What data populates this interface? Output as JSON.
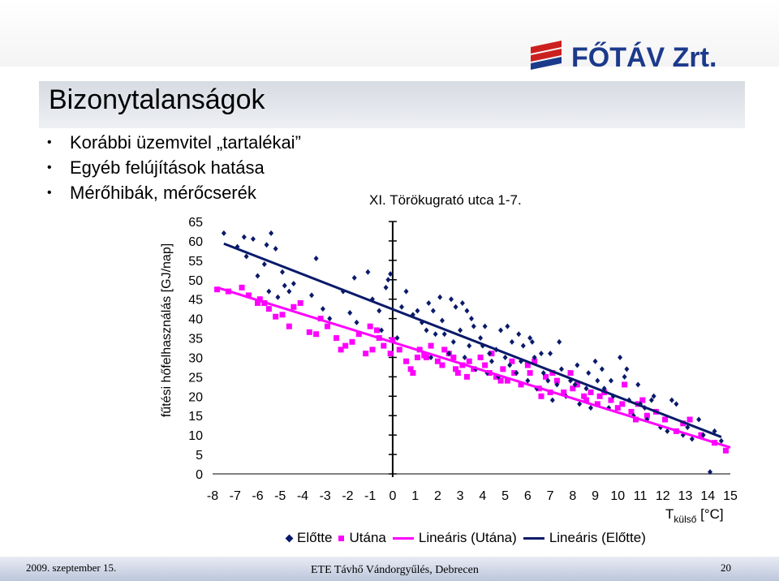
{
  "slide": {
    "title": "Bizonytalanságok",
    "bullets": [
      "Korábbi üzemvitel „tartalékai”",
      "Egyéb felújítások hatása",
      "Mérőhibák, mérőcserék"
    ],
    "logo_text": "FŐTÁV Zrt.",
    "footer": {
      "date": "2009. szeptember 15.",
      "event": "ETE Távhő Vándorgyűlés, Debrecen",
      "page": "20"
    }
  },
  "colors": {
    "before": "#0a1a6a",
    "after": "#ff00ff",
    "logo_red": "#cc2020",
    "logo_blue": "#1c3a8c"
  },
  "chart_data": {
    "type": "scatter",
    "title": "XI. Törökugrató utca 1-7.",
    "ylabel": "fűtési hőfelhasználás [GJ/nap]",
    "xlabel_main": "T",
    "xlabel_sub": "külső",
    "xlabel_unit": " [°C]",
    "xlim": [
      -8,
      15
    ],
    "ylim": [
      0,
      65
    ],
    "xticks": [
      -8,
      -7,
      -6,
      -5,
      -4,
      -3,
      -2,
      -1,
      0,
      1,
      2,
      3,
      4,
      5,
      6,
      7,
      8,
      9,
      10,
      11,
      12,
      13,
      14,
      15
    ],
    "yticks": [
      0,
      5,
      10,
      15,
      20,
      25,
      30,
      35,
      40,
      45,
      50,
      55,
      60,
      65
    ],
    "legend_position": "bottom",
    "series": [
      {
        "name": "Előtte",
        "marker": "diamond",
        "points": [
          [
            -7.5,
            62
          ],
          [
            -6.9,
            58.5
          ],
          [
            -6.6,
            61
          ],
          [
            -6.2,
            60.5
          ],
          [
            -6.5,
            56
          ],
          [
            -5.6,
            59
          ],
          [
            -5.4,
            62
          ],
          [
            -5.2,
            58
          ],
          [
            -5.7,
            54
          ],
          [
            -6,
            51
          ],
          [
            -5.5,
            47
          ],
          [
            -5.1,
            45.5
          ],
          [
            -4.8,
            48.5
          ],
          [
            -4.4,
            49
          ],
          [
            -4.6,
            47
          ],
          [
            -4.9,
            52
          ],
          [
            -3.4,
            55.5
          ],
          [
            -3.6,
            46
          ],
          [
            -3.1,
            42.5
          ],
          [
            -2.8,
            40
          ],
          [
            -2.2,
            47
          ],
          [
            -1.9,
            41.5
          ],
          [
            -1.6,
            39
          ],
          [
            -1.7,
            50.5
          ],
          [
            -1.1,
            52
          ],
          [
            -0.9,
            45
          ],
          [
            -0.6,
            42
          ],
          [
            -0.2,
            50
          ],
          [
            -0.3,
            48
          ],
          [
            -0.1,
            51.5
          ],
          [
            0.4,
            43
          ],
          [
            0.6,
            47
          ],
          [
            0.9,
            41
          ],
          [
            1.1,
            42
          ],
          [
            1.3,
            39
          ],
          [
            1.6,
            44
          ],
          [
            1.8,
            42
          ],
          [
            2.1,
            45.5
          ],
          [
            2.2,
            39.5
          ],
          [
            2.3,
            36
          ],
          [
            2.6,
            45
          ],
          [
            2.8,
            43
          ],
          [
            3.1,
            44
          ],
          [
            3.3,
            42
          ],
          [
            3.5,
            40
          ],
          [
            1.5,
            37
          ],
          [
            1.9,
            36
          ],
          [
            2.7,
            34
          ],
          [
            3,
            37
          ],
          [
            3.4,
            33
          ],
          [
            3.9,
            35
          ],
          [
            4.1,
            38
          ],
          [
            4.3,
            31
          ],
          [
            4.6,
            32
          ],
          [
            4.8,
            37
          ],
          [
            5.1,
            38
          ],
          [
            5.3,
            34
          ],
          [
            5.6,
            36
          ],
          [
            5.8,
            33
          ],
          [
            6.1,
            35
          ],
          [
            6.3,
            30
          ],
          [
            6.6,
            31
          ],
          [
            3.2,
            30
          ],
          [
            3.7,
            27
          ],
          [
            4.2,
            26
          ],
          [
            4.4,
            29
          ],
          [
            4.7,
            25
          ],
          [
            5.2,
            28
          ],
          [
            5.5,
            26
          ],
          [
            5.7,
            29
          ],
          [
            6,
            24
          ],
          [
            6.4,
            22
          ],
          [
            6.7,
            26
          ],
          [
            6.9,
            24
          ],
          [
            7.1,
            19
          ],
          [
            7.3,
            23
          ],
          [
            7.5,
            27
          ],
          [
            7.7,
            20
          ],
          [
            7.9,
            24
          ],
          [
            8.1,
            23
          ],
          [
            8.3,
            18
          ],
          [
            8.6,
            22
          ],
          [
            8.8,
            17
          ],
          [
            9.1,
            24
          ],
          [
            9.4,
            22
          ],
          [
            9.6,
            17
          ],
          [
            9.8,
            20
          ],
          [
            10.1,
            30
          ],
          [
            10.3,
            25
          ],
          [
            10.5,
            19
          ],
          [
            10.7,
            15
          ],
          [
            11,
            18
          ],
          [
            11.3,
            14
          ],
          [
            11.6,
            20
          ],
          [
            11.9,
            12
          ],
          [
            12.2,
            11
          ],
          [
            12.6,
            18
          ],
          [
            12.9,
            10
          ],
          [
            13.3,
            9
          ],
          [
            13.8,
            10
          ],
          [
            14.3,
            11
          ],
          [
            14.6,
            8.5
          ],
          [
            7.4,
            34
          ],
          [
            8.2,
            28
          ],
          [
            9,
            29
          ],
          [
            10.4,
            27
          ],
          [
            11.5,
            19
          ],
          [
            13.1,
            12
          ],
          [
            2.5,
            31
          ],
          [
            4,
            33
          ],
          [
            6.2,
            34
          ],
          [
            8.7,
            26
          ],
          [
            9.3,
            27
          ],
          [
            10.9,
            23
          ],
          [
            12.4,
            19
          ],
          [
            13.6,
            14
          ],
          [
            14.1,
            0.5
          ],
          [
            0.2,
            35
          ],
          [
            -0.5,
            37
          ],
          [
            1.7,
            30
          ],
          [
            3.6,
            38
          ],
          [
            5,
            30
          ],
          [
            7,
            31
          ],
          [
            9.7,
            24
          ],
          [
            11.2,
            17
          ]
        ],
        "trend": {
          "name": "Lineáris (Előtte)",
          "x": [
            -7.5,
            14.6
          ],
          "y": [
            59.3,
            9.5
          ]
        }
      },
      {
        "name": "Utána",
        "marker": "square",
        "points": [
          [
            -7.8,
            47.5
          ],
          [
            -7.3,
            47
          ],
          [
            -6.7,
            48
          ],
          [
            -6.4,
            46
          ],
          [
            -6,
            44
          ],
          [
            -5.7,
            44
          ],
          [
            -5.5,
            42.5
          ],
          [
            -5.2,
            40.5
          ],
          [
            -4.9,
            41
          ],
          [
            -4.6,
            38
          ],
          [
            -4.4,
            43
          ],
          [
            -4.1,
            44
          ],
          [
            -3.7,
            36.5
          ],
          [
            -3.4,
            36
          ],
          [
            -2.9,
            38
          ],
          [
            -2.5,
            35
          ],
          [
            -2.3,
            32
          ],
          [
            -2.1,
            33
          ],
          [
            -1.8,
            34
          ],
          [
            -1.5,
            36
          ],
          [
            -1.2,
            31
          ],
          [
            -0.9,
            32
          ],
          [
            -0.6,
            35
          ],
          [
            -0.4,
            33
          ],
          [
            -0.1,
            31
          ],
          [
            0.3,
            32
          ],
          [
            0.6,
            29
          ],
          [
            0.8,
            27
          ],
          [
            1.1,
            30
          ],
          [
            1.4,
            30.5
          ],
          [
            1.2,
            32
          ],
          [
            1.7,
            33
          ],
          [
            2,
            29
          ],
          [
            2.2,
            28
          ],
          [
            2.5,
            31
          ],
          [
            2.7,
            30
          ],
          [
            2.9,
            26
          ],
          [
            3.1,
            28
          ],
          [
            3.3,
            25
          ],
          [
            3.6,
            27
          ],
          [
            3.9,
            30
          ],
          [
            4.1,
            28
          ],
          [
            4.3,
            26
          ],
          [
            4.6,
            25
          ],
          [
            4.9,
            27
          ],
          [
            5.1,
            24
          ],
          [
            5.4,
            26
          ],
          [
            5.7,
            23
          ],
          [
            6,
            28
          ],
          [
            6.3,
            29
          ],
          [
            6.5,
            22
          ],
          [
            6.8,
            25
          ],
          [
            7,
            21
          ],
          [
            7.3,
            24
          ],
          [
            7.6,
            21
          ],
          [
            7.9,
            26
          ],
          [
            8.2,
            23
          ],
          [
            8.5,
            20
          ],
          [
            8.8,
            21
          ],
          [
            9.1,
            18
          ],
          [
            9.4,
            21
          ],
          [
            9.7,
            19
          ],
          [
            10,
            17
          ],
          [
            10.3,
            23
          ],
          [
            10.6,
            16
          ],
          [
            10.9,
            18
          ],
          [
            11.3,
            15
          ],
          [
            11.7,
            16
          ],
          [
            12.1,
            14
          ],
          [
            12.6,
            11
          ],
          [
            13.2,
            14
          ],
          [
            13.7,
            10
          ],
          [
            14.3,
            8
          ],
          [
            14.8,
            6
          ],
          [
            -1,
            38
          ],
          [
            0,
            34.5
          ],
          [
            1.5,
            30
          ],
          [
            2.3,
            32
          ],
          [
            3.4,
            29
          ],
          [
            4.4,
            31
          ],
          [
            5.3,
            29
          ],
          [
            6.1,
            26
          ],
          [
            7.1,
            26
          ],
          [
            8,
            22
          ],
          [
            9.2,
            20
          ],
          [
            10.2,
            18
          ],
          [
            11.1,
            19
          ],
          [
            12.9,
            13
          ],
          [
            -5.9,
            45
          ],
          [
            -3.2,
            40
          ],
          [
            -0.7,
            37
          ],
          [
            0.9,
            26
          ],
          [
            2.8,
            27
          ],
          [
            4.8,
            24
          ],
          [
            6.6,
            20
          ],
          [
            8.6,
            19
          ],
          [
            10.8,
            14
          ]
        ],
        "trend": {
          "name": "Lineáris (Utána)",
          "x": [
            -7.8,
            15
          ],
          "y": [
            48,
            6.8
          ]
        }
      }
    ]
  }
}
